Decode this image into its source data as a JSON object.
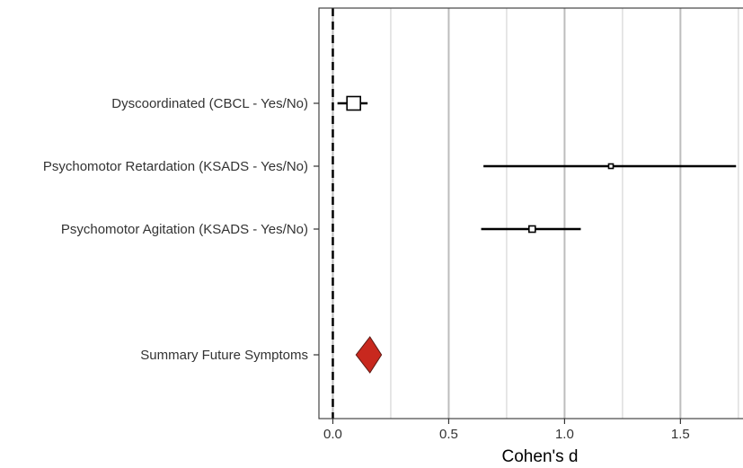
{
  "chart_data": {
    "type": "forest",
    "xlabel": "Cohen's d",
    "xlim": [
      -0.06,
      1.77
    ],
    "xticks": [
      0.0,
      0.5,
      1.0,
      1.5
    ],
    "xtick_labels": [
      "0.0",
      "0.5",
      "1.0",
      "1.5"
    ],
    "grid": true,
    "reference_line": 0,
    "studies": [
      {
        "label": "Dyscoordinated (CBCL - Yes/No)",
        "estimate": 0.09,
        "ci": [
          0.02,
          0.15
        ],
        "weight": "large"
      },
      {
        "label": "Psychomotor Retardation (KSADS - Yes/No)",
        "estimate": 1.2,
        "ci": [
          0.65,
          1.74
        ],
        "weight": "small"
      },
      {
        "label": "Psychomotor Agitation (KSADS - Yes/No)",
        "estimate": 0.86,
        "ci": [
          0.64,
          1.07
        ],
        "weight": "medium"
      }
    ],
    "summary": {
      "label": "Summary Future Symptoms",
      "estimate": 0.16,
      "ci": [
        0.1,
        0.21
      ],
      "color": "#c8281e"
    }
  }
}
